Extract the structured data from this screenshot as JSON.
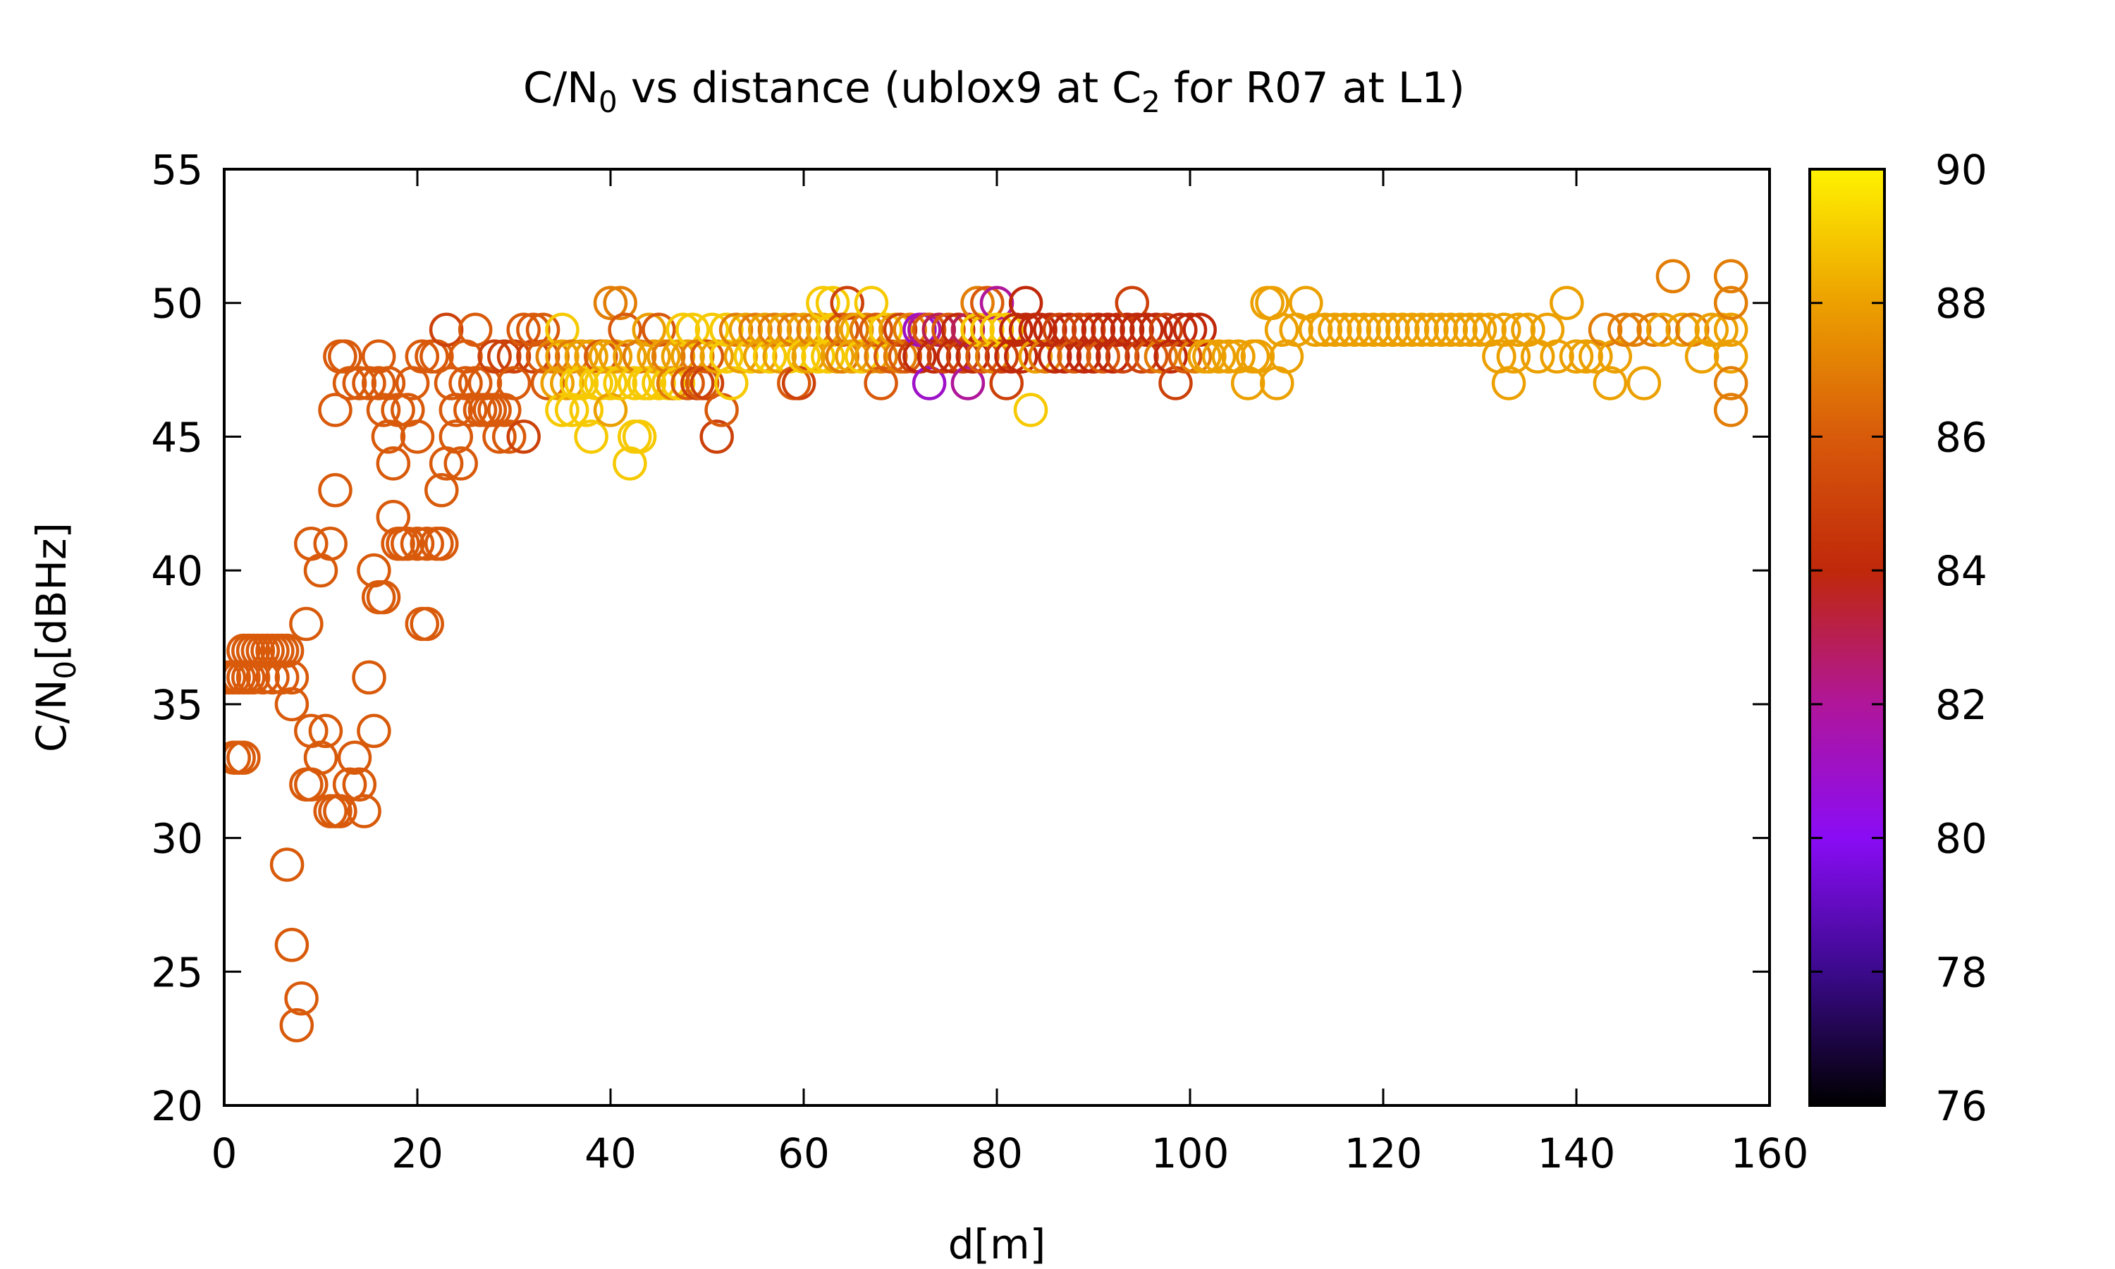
{
  "chart_data": {
    "type": "scatter",
    "title": "C/N0 vs distance (ublox9 at C2 for R07 at L1)",
    "title_parts": [
      "C/N",
      "0",
      " vs distance (ublox9 at C",
      "2",
      " for R07 at L1)"
    ],
    "xlabel": "d[m]",
    "ylabel": "C/N0[dBHz]",
    "ylabel_parts": [
      "C/N",
      "0",
      "[dBHz]"
    ],
    "xlim": [
      0,
      160
    ],
    "ylim": [
      20,
      55
    ],
    "x_ticks": [
      0,
      20,
      40,
      60,
      80,
      100,
      120,
      140,
      160
    ],
    "y_ticks": [
      20,
      25,
      30,
      35,
      40,
      45,
      50,
      55
    ],
    "colorbar": {
      "range": [
        76,
        90
      ],
      "ticks": [
        76,
        78,
        80,
        82,
        84,
        86,
        88,
        90
      ],
      "palette": [
        "#000000",
        "#3b0a8c",
        "#8a0cf5",
        "#b0169a",
        "#c0280a",
        "#d85a0a",
        "#eca000",
        "#fff200"
      ]
    },
    "grid": false,
    "marker": "open-circle",
    "points": [
      [
        0,
        36,
        86
      ],
      [
        0.5,
        36,
        86
      ],
      [
        1,
        36,
        86
      ],
      [
        1.5,
        36,
        86
      ],
      [
        2,
        36,
        86
      ],
      [
        2.5,
        36,
        86
      ],
      [
        3,
        36,
        86
      ],
      [
        4,
        36,
        86
      ],
      [
        5,
        36,
        86
      ],
      [
        6,
        36,
        86
      ],
      [
        7,
        36,
        86
      ],
      [
        1,
        33,
        86
      ],
      [
        1.5,
        33,
        86
      ],
      [
        2,
        33,
        86
      ],
      [
        2,
        37,
        86
      ],
      [
        2.5,
        37,
        86
      ],
      [
        3,
        37,
        86
      ],
      [
        3.5,
        37,
        86
      ],
      [
        4,
        37,
        86
      ],
      [
        4.5,
        37,
        86
      ],
      [
        5,
        37,
        86
      ],
      [
        5.5,
        37,
        86
      ],
      [
        6,
        37,
        86
      ],
      [
        6.5,
        37,
        86
      ],
      [
        7,
        35,
        86
      ],
      [
        6.5,
        29,
        86
      ],
      [
        7,
        26,
        86
      ],
      [
        7.5,
        23,
        86
      ],
      [
        8,
        24,
        86
      ],
      [
        8.5,
        38,
        86
      ],
      [
        8.5,
        32,
        86
      ],
      [
        9,
        41,
        86
      ],
      [
        9,
        34,
        86
      ],
      [
        9,
        32,
        86
      ],
      [
        10,
        40,
        86
      ],
      [
        10,
        33,
        86
      ],
      [
        10.5,
        34,
        86
      ],
      [
        11,
        41,
        86
      ],
      [
        11,
        31,
        86
      ],
      [
        11.5,
        31,
        86
      ],
      [
        11.5,
        46,
        86
      ],
      [
        11.5,
        43,
        86
      ],
      [
        12,
        48,
        86
      ],
      [
        12,
        31,
        86
      ],
      [
        12.5,
        48,
        86
      ],
      [
        13,
        47,
        86
      ],
      [
        13,
        32,
        86
      ],
      [
        13.5,
        33,
        86
      ],
      [
        14,
        32,
        86
      ],
      [
        14,
        47,
        86
      ],
      [
        14.5,
        31,
        86
      ],
      [
        15,
        36,
        86
      ],
      [
        15,
        47,
        86
      ],
      [
        15.5,
        34,
        86
      ],
      [
        15.5,
        40,
        86
      ],
      [
        16,
        47,
        86
      ],
      [
        16,
        48,
        86
      ],
      [
        16,
        39,
        86
      ],
      [
        16.5,
        46,
        86
      ],
      [
        16.5,
        39,
        86
      ],
      [
        17,
        45,
        86
      ],
      [
        17,
        47,
        86
      ],
      [
        17.5,
        44,
        86
      ],
      [
        17.5,
        42,
        86
      ],
      [
        18,
        46,
        86
      ],
      [
        18,
        41,
        86
      ],
      [
        18.5,
        41,
        86
      ],
      [
        19,
        46,
        86
      ],
      [
        19,
        41,
        86
      ],
      [
        19.5,
        47,
        86
      ],
      [
        20,
        45,
        86
      ],
      [
        20,
        41,
        86
      ],
      [
        20.5,
        48,
        86
      ],
      [
        20.5,
        38,
        86
      ],
      [
        21,
        38,
        86
      ],
      [
        21,
        41,
        86
      ],
      [
        21.5,
        48,
        86
      ],
      [
        22,
        48,
        86
      ],
      [
        22,
        41,
        86
      ],
      [
        22.5,
        43,
        86
      ],
      [
        22.5,
        41,
        86
      ],
      [
        23,
        44,
        86
      ],
      [
        23,
        49,
        85
      ],
      [
        23.5,
        47,
        86
      ],
      [
        24,
        46,
        86
      ],
      [
        24,
        45,
        86
      ],
      [
        24.5,
        44,
        86
      ],
      [
        25,
        48,
        86
      ],
      [
        25,
        47,
        86
      ],
      [
        25.5,
        46,
        86
      ],
      [
        26,
        49,
        86
      ],
      [
        26,
        47,
        86
      ],
      [
        26.5,
        46,
        86
      ],
      [
        27,
        47,
        86
      ],
      [
        27,
        46,
        86
      ],
      [
        27.5,
        46,
        86
      ],
      [
        28,
        48,
        85
      ],
      [
        28,
        46,
        86
      ],
      [
        28.5,
        45,
        86
      ],
      [
        29,
        48,
        85
      ],
      [
        29,
        46,
        86
      ],
      [
        29.5,
        45,
        86
      ],
      [
        30,
        48,
        85
      ],
      [
        30,
        47,
        86
      ],
      [
        31,
        49,
        86
      ],
      [
        31,
        45,
        85
      ],
      [
        32,
        48,
        85
      ],
      [
        32,
        49,
        86
      ],
      [
        33,
        48,
        86
      ],
      [
        33,
        49,
        86
      ],
      [
        33.5,
        47,
        86
      ],
      [
        34,
        48,
        87
      ],
      [
        34.5,
        47,
        88
      ],
      [
        35,
        49,
        89
      ],
      [
        35,
        48,
        88
      ],
      [
        35,
        46,
        89
      ],
      [
        35.5,
        47,
        88
      ],
      [
        36,
        48,
        87
      ],
      [
        36,
        46,
        89
      ],
      [
        36.5,
        47,
        89
      ],
      [
        37,
        48,
        88
      ],
      [
        37,
        47,
        89
      ],
      [
        37.5,
        46,
        89
      ],
      [
        38,
        48,
        88
      ],
      [
        38,
        45,
        89
      ],
      [
        38.5,
        47,
        89
      ],
      [
        39,
        48,
        86
      ],
      [
        39,
        47,
        89
      ],
      [
        39.5,
        48,
        88
      ],
      [
        40,
        50,
        87
      ],
      [
        40,
        47,
        89
      ],
      [
        40,
        46,
        88
      ],
      [
        40.5,
        48,
        88
      ],
      [
        41,
        50,
        87
      ],
      [
        41,
        47,
        89
      ],
      [
        41.5,
        49,
        86
      ],
      [
        42,
        48,
        88
      ],
      [
        42,
        44,
        89
      ],
      [
        42.5,
        45,
        89
      ],
      [
        42.5,
        47,
        89
      ],
      [
        43,
        48,
        87
      ],
      [
        43,
        45,
        89
      ],
      [
        43.5,
        47,
        89
      ],
      [
        44,
        49,
        88
      ],
      [
        44,
        47,
        89
      ],
      [
        44.5,
        48,
        88
      ],
      [
        45,
        49,
        86
      ],
      [
        45,
        47,
        89
      ],
      [
        45.5,
        48,
        88
      ],
      [
        46,
        47,
        89
      ],
      [
        46,
        48,
        87
      ],
      [
        46.5,
        47,
        87
      ],
      [
        47,
        48,
        88
      ],
      [
        47,
        47,
        89
      ],
      [
        47.5,
        49,
        89
      ],
      [
        48,
        48,
        88
      ],
      [
        48,
        47,
        86
      ],
      [
        48.5,
        49,
        89
      ],
      [
        49,
        48,
        87
      ],
      [
        49,
        47,
        85
      ],
      [
        49.5,
        47,
        86
      ],
      [
        50,
        48,
        86
      ],
      [
        50,
        47,
        85
      ],
      [
        50.5,
        49,
        89
      ],
      [
        51,
        48,
        88
      ],
      [
        51,
        45,
        85
      ],
      [
        51.5,
        46,
        86
      ],
      [
        52,
        48,
        89
      ],
      [
        52,
        49,
        89
      ],
      [
        52.5,
        47,
        89
      ],
      [
        53,
        49,
        87
      ],
      [
        53.5,
        48,
        88
      ],
      [
        54,
        49,
        88
      ],
      [
        54.5,
        48,
        89
      ],
      [
        55,
        49,
        87
      ],
      [
        55.5,
        48,
        88
      ],
      [
        56,
        49,
        88
      ],
      [
        56.5,
        48,
        89
      ],
      [
        57,
        49,
        87
      ],
      [
        57.5,
        48,
        88
      ],
      [
        58,
        49,
        88
      ],
      [
        58.5,
        48,
        89
      ],
      [
        59,
        49,
        87
      ],
      [
        59,
        47,
        86
      ],
      [
        59.5,
        47,
        85
      ],
      [
        60,
        49,
        88
      ],
      [
        60,
        48,
        89
      ],
      [
        60.5,
        48,
        88
      ],
      [
        61,
        49,
        87
      ],
      [
        61.5,
        48,
        89
      ],
      [
        62,
        49,
        88
      ],
      [
        62,
        50,
        89
      ],
      [
        62.5,
        48,
        89
      ],
      [
        63,
        49,
        89
      ],
      [
        63,
        50,
        89
      ],
      [
        63.5,
        48,
        88
      ],
      [
        64,
        49,
        86
      ],
      [
        64,
        48,
        87
      ],
      [
        64.5,
        50,
        85
      ],
      [
        65,
        49,
        87
      ],
      [
        65,
        48,
        88
      ],
      [
        65.5,
        49,
        88
      ],
      [
        66,
        48,
        89
      ],
      [
        66.5,
        49,
        87
      ],
      [
        67,
        48,
        88
      ],
      [
        67,
        50,
        89
      ],
      [
        67.5,
        49,
        86
      ],
      [
        68,
        47,
        86
      ],
      [
        68,
        48,
        87
      ],
      [
        68.5,
        49,
        89
      ],
      [
        69,
        48,
        86
      ],
      [
        69.5,
        49,
        88
      ],
      [
        70,
        48,
        87
      ],
      [
        70,
        49,
        85
      ],
      [
        70.5,
        48,
        86
      ],
      [
        71,
        49,
        87
      ],
      [
        71.5,
        48,
        85
      ],
      [
        72,
        49,
        81
      ],
      [
        72,
        48,
        84
      ],
      [
        72.5,
        49,
        82
      ],
      [
        73,
        47,
        81
      ],
      [
        73,
        49,
        86
      ],
      [
        73.5,
        48,
        84
      ],
      [
        74,
        49,
        83
      ],
      [
        74.5,
        48,
        85
      ],
      [
        75,
        49,
        86
      ],
      [
        75.5,
        48,
        84
      ],
      [
        76,
        49,
        84
      ],
      [
        76.5,
        48,
        85
      ],
      [
        77,
        47,
        82
      ],
      [
        77,
        49,
        83
      ],
      [
        77.5,
        48,
        84
      ],
      [
        78,
        50,
        87
      ],
      [
        78,
        49,
        89
      ],
      [
        78.5,
        48,
        86
      ],
      [
        79,
        49,
        89
      ],
      [
        79,
        50,
        86
      ],
      [
        79.5,
        48,
        87
      ],
      [
        80,
        50,
        82
      ],
      [
        80,
        49,
        89
      ],
      [
        80.5,
        48,
        85
      ],
      [
        81,
        49,
        89
      ],
      [
        81,
        47,
        85
      ],
      [
        81.5,
        48,
        84
      ],
      [
        82,
        49,
        84
      ],
      [
        82.5,
        48,
        84
      ],
      [
        83,
        50,
        84
      ],
      [
        83,
        49,
        84
      ],
      [
        83.5,
        46,
        89
      ],
      [
        84,
        49,
        84
      ],
      [
        84,
        48,
        88
      ],
      [
        84.5,
        49,
        84
      ],
      [
        85,
        48,
        87
      ],
      [
        85.5,
        49,
        84
      ],
      [
        86,
        48,
        84
      ],
      [
        86.5,
        49,
        85
      ],
      [
        87,
        48,
        84
      ],
      [
        87.5,
        49,
        84
      ],
      [
        88,
        48,
        86
      ],
      [
        88.5,
        49,
        85
      ],
      [
        89,
        48,
        84
      ],
      [
        89.5,
        49,
        85
      ],
      [
        90,
        48,
        84
      ],
      [
        90.5,
        49,
        84
      ],
      [
        91,
        48,
        86
      ],
      [
        91.5,
        49,
        84
      ],
      [
        92,
        48,
        84
      ],
      [
        92.5,
        49,
        84
      ],
      [
        93,
        48,
        85
      ],
      [
        93.5,
        49,
        84
      ],
      [
        94,
        50,
        85
      ],
      [
        94.5,
        49,
        84
      ],
      [
        95,
        48,
        85
      ],
      [
        95.5,
        49,
        84
      ],
      [
        96,
        48,
        86
      ],
      [
        96.5,
        49,
        84
      ],
      [
        97,
        48,
        87
      ],
      [
        97.5,
        49,
        85
      ],
      [
        98,
        48,
        84
      ],
      [
        98.5,
        47,
        85
      ],
      [
        99,
        49,
        84
      ],
      [
        99.5,
        48,
        86
      ],
      [
        100,
        49,
        84
      ],
      [
        100.5,
        48,
        87
      ],
      [
        101,
        49,
        84
      ],
      [
        101.5,
        48,
        88
      ],
      [
        102,
        48,
        88
      ],
      [
        103,
        48,
        88
      ],
      [
        104,
        48,
        88
      ],
      [
        105,
        48,
        88
      ],
      [
        106,
        47,
        88
      ],
      [
        106.5,
        48,
        88
      ],
      [
        107,
        48,
        88
      ],
      [
        108,
        50,
        88
      ],
      [
        108.5,
        50,
        88
      ],
      [
        109,
        47,
        88
      ],
      [
        109.5,
        49,
        88
      ],
      [
        110,
        48,
        88
      ],
      [
        111,
        49,
        88
      ],
      [
        112,
        50,
        88
      ],
      [
        113,
        49,
        88
      ],
      [
        114,
        49,
        88
      ],
      [
        115,
        49,
        88
      ],
      [
        116,
        49,
        88
      ],
      [
        117,
        49,
        88
      ],
      [
        118,
        49,
        88
      ],
      [
        119,
        49,
        88
      ],
      [
        120,
        49,
        88
      ],
      [
        121,
        49,
        88
      ],
      [
        122,
        49,
        88
      ],
      [
        123,
        49,
        88
      ],
      [
        124,
        49,
        88
      ],
      [
        125,
        49,
        88
      ],
      [
        126,
        49,
        88
      ],
      [
        127,
        49,
        88
      ],
      [
        128,
        49,
        88
      ],
      [
        129,
        49,
        88
      ],
      [
        130,
        49,
        88
      ],
      [
        131,
        49,
        88
      ],
      [
        132,
        48,
        88
      ],
      [
        132.5,
        49,
        88
      ],
      [
        133,
        47,
        88
      ],
      [
        133.5,
        48,
        88
      ],
      [
        134,
        49,
        88
      ],
      [
        135,
        49,
        88
      ],
      [
        136,
        48,
        88
      ],
      [
        137,
        49,
        88
      ],
      [
        138,
        48,
        88
      ],
      [
        139,
        50,
        88
      ],
      [
        140,
        48,
        88
      ],
      [
        141,
        48,
        88
      ],
      [
        142,
        48,
        88
      ],
      [
        143,
        49,
        87
      ],
      [
        143.5,
        47,
        88
      ],
      [
        144,
        48,
        88
      ],
      [
        145,
        49,
        87
      ],
      [
        146,
        49,
        87
      ],
      [
        147,
        47,
        88
      ],
      [
        148,
        49,
        87
      ],
      [
        149,
        49,
        88
      ],
      [
        150,
        51,
        87
      ],
      [
        151,
        49,
        88
      ],
      [
        152,
        49,
        87
      ],
      [
        153,
        48,
        88
      ],
      [
        154,
        49,
        88
      ],
      [
        155,
        49,
        88
      ],
      [
        156,
        49,
        88
      ],
      [
        156,
        51,
        87
      ],
      [
        156,
        50,
        87
      ],
      [
        156,
        48,
        88
      ],
      [
        156,
        47,
        87
      ],
      [
        156,
        46,
        87
      ]
    ]
  }
}
